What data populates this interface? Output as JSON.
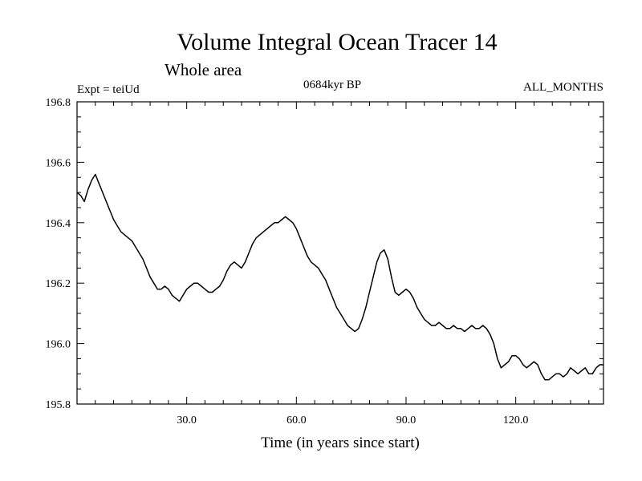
{
  "chart_data": {
    "type": "line",
    "title": "Volume Integral Ocean Tracer 14",
    "subtitle": "Whole area",
    "expt_label": "Expt = teiUd",
    "period_label": "0684kyr BP",
    "months_label": "ALL_MONTHS",
    "xlabel": "Time (in years since start)",
    "ylabel": "",
    "xlim": [
      0,
      144
    ],
    "ylim": [
      195.8,
      196.8
    ],
    "x_ticks": [
      30,
      60,
      90,
      120
    ],
    "x_tick_labels": [
      "30.0",
      "60.0",
      "90.0",
      "120.0"
    ],
    "y_ticks": [
      195.8,
      196.0,
      196.2,
      196.4,
      196.6,
      196.8
    ],
    "y_tick_labels": [
      "195.8",
      "196.0",
      "196.2",
      "196.4",
      "196.6",
      "196.8"
    ],
    "grid": false,
    "line_color": "#000000",
    "series": [
      {
        "x": [
          0,
          1,
          2,
          3,
          4,
          5,
          6,
          7,
          8,
          9,
          10,
          11,
          12,
          13,
          14,
          15,
          16,
          17,
          18,
          19,
          20,
          21,
          22,
          23,
          24,
          25,
          26,
          27,
          28,
          29,
          30,
          31,
          32,
          33,
          34,
          35,
          36,
          37,
          38,
          39,
          40,
          41,
          42,
          43,
          44,
          45,
          46,
          47,
          48,
          49,
          50,
          51,
          52,
          53,
          54,
          55,
          56,
          57,
          58,
          59,
          60,
          61,
          62,
          63,
          64,
          65,
          66,
          67,
          68,
          69,
          70,
          71,
          72,
          73,
          74,
          75,
          76,
          77,
          78,
          79,
          80,
          81,
          82,
          83,
          84,
          85,
          86,
          87,
          88,
          89,
          90,
          91,
          92,
          93,
          94,
          95,
          96,
          97,
          98,
          99,
          100,
          101,
          102,
          103,
          104,
          105,
          106,
          107,
          108,
          109,
          110,
          111,
          112,
          113,
          114,
          115,
          116,
          117,
          118,
          119,
          120,
          121,
          122,
          123,
          124,
          125,
          126,
          127,
          128,
          129,
          130,
          131,
          132,
          133,
          134,
          135,
          136,
          137,
          138,
          139,
          140,
          141,
          142,
          143,
          144
        ],
        "values": [
          196.5,
          196.49,
          196.47,
          196.51,
          196.54,
          196.56,
          196.53,
          196.5,
          196.47,
          196.44,
          196.41,
          196.39,
          196.37,
          196.36,
          196.35,
          196.34,
          196.32,
          196.3,
          196.28,
          196.25,
          196.22,
          196.2,
          196.18,
          196.18,
          196.19,
          196.18,
          196.16,
          196.15,
          196.14,
          196.16,
          196.18,
          196.19,
          196.2,
          196.2,
          196.19,
          196.18,
          196.17,
          196.17,
          196.18,
          196.19,
          196.21,
          196.24,
          196.26,
          196.27,
          196.26,
          196.25,
          196.27,
          196.3,
          196.33,
          196.35,
          196.36,
          196.37,
          196.38,
          196.39,
          196.4,
          196.4,
          196.41,
          196.42,
          196.41,
          196.4,
          196.38,
          196.35,
          196.32,
          196.29,
          196.27,
          196.26,
          196.25,
          196.23,
          196.21,
          196.18,
          196.15,
          196.12,
          196.1,
          196.08,
          196.06,
          196.05,
          196.04,
          196.05,
          196.08,
          196.12,
          196.17,
          196.22,
          196.27,
          196.3,
          196.31,
          196.28,
          196.22,
          196.17,
          196.16,
          196.17,
          196.18,
          196.17,
          196.15,
          196.12,
          196.1,
          196.08,
          196.07,
          196.06,
          196.06,
          196.07,
          196.06,
          196.05,
          196.05,
          196.06,
          196.05,
          196.05,
          196.04,
          196.05,
          196.06,
          196.05,
          196.05,
          196.06,
          196.05,
          196.03,
          196.0,
          195.95,
          195.92,
          195.93,
          195.94,
          195.96,
          195.96,
          195.95,
          195.93,
          195.92,
          195.93,
          195.94,
          195.93,
          195.9,
          195.88,
          195.88,
          195.89,
          195.9,
          195.9,
          195.89,
          195.9,
          195.92,
          195.91,
          195.9,
          195.91,
          195.92,
          195.9,
          195.9,
          195.92,
          195.93,
          195.93
        ]
      }
    ]
  }
}
